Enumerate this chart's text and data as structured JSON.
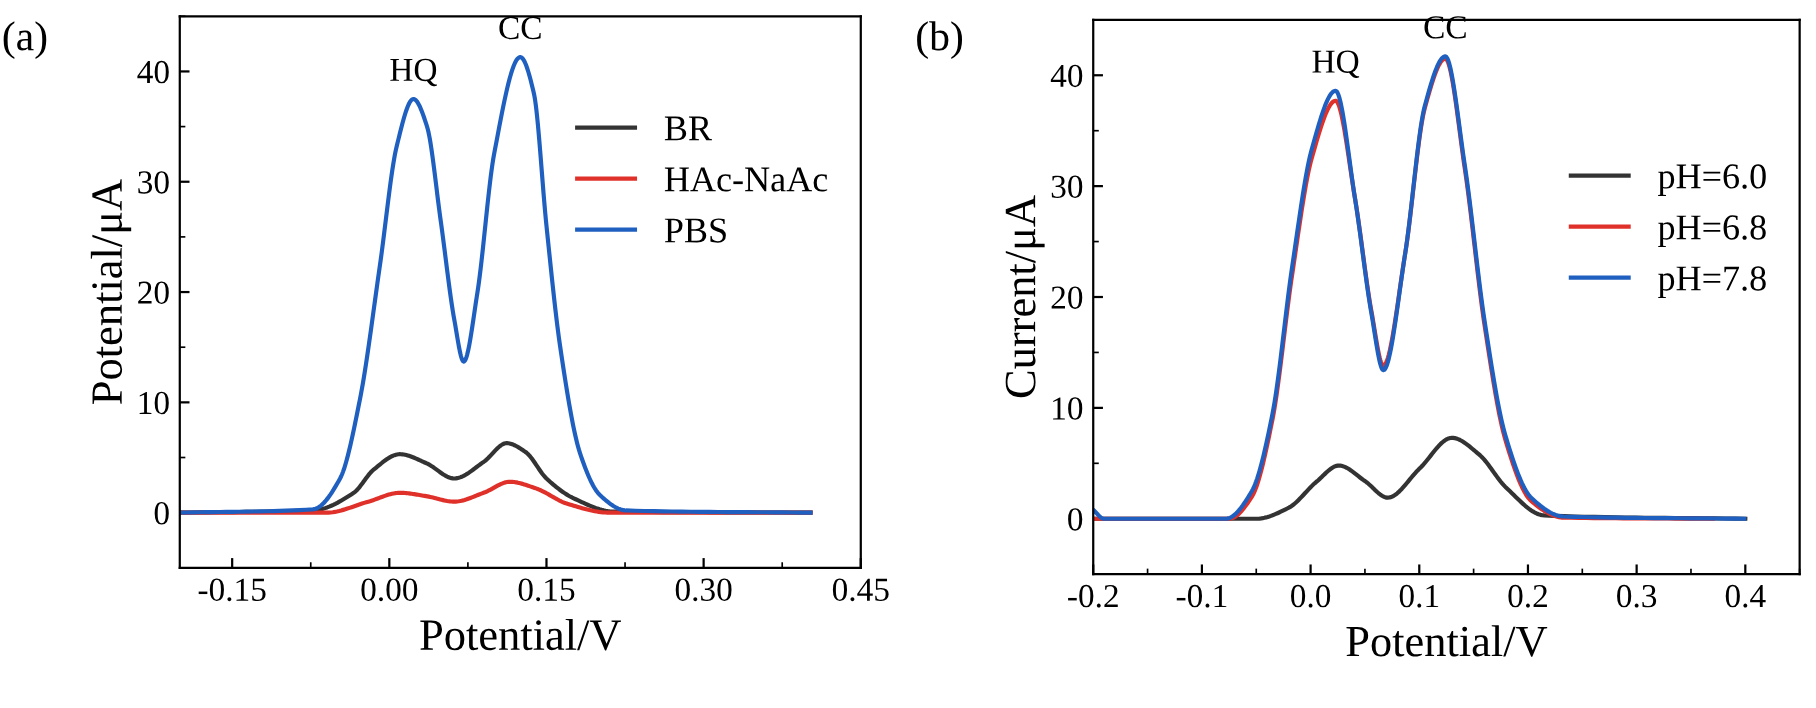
{
  "chart_data": [
    {
      "type": "line",
      "xlabel": "Potential/V",
      "ylabel": "Potential/μA",
      "xlim": [
        -0.2,
        0.45
      ],
      "ylim": [
        -5,
        45
      ],
      "xticks": [
        {
          "value": -0.15,
          "label": "-0.15"
        },
        {
          "value": 0,
          "label": "0.00"
        },
        {
          "value": 0.15,
          "label": "0.15"
        },
        {
          "value": 0.3,
          "label": "0.30"
        },
        {
          "value": 0.45,
          "label": "0.45"
        }
      ],
      "yticks": [
        0,
        10,
        20,
        30,
        40
      ],
      "legend": "top right",
      "grid": false,
      "annotations": [
        "(a)",
        {
          "text": "HQ",
          "x": 0.023,
          "y": 37.5
        },
        {
          "text": "CC",
          "x": 0.125,
          "y": 41.3
        }
      ],
      "series": [
        {
          "name": "BR",
          "color": "#333333",
          "x": [
            -0.2,
            -0.073,
            -0.034,
            -0.015,
            0.01,
            0.035,
            0.062,
            0.09,
            0.112,
            0.13,
            0.15,
            0.176,
            0.214,
            0.402
          ],
          "values": [
            0,
            0.2,
            1.8,
            3.9,
            5.3,
            4.5,
            3.1,
            4.6,
            6.3,
            5.5,
            3.1,
            1.3,
            0.1,
            0
          ]
        },
        {
          "name": "HAc-NaAc",
          "color": "#e0302a",
          "x": [
            -0.2,
            -0.06,
            -0.02,
            0.01,
            0.035,
            0.062,
            0.09,
            0.115,
            0.14,
            0.17,
            0.21,
            0.402
          ],
          "values": [
            0,
            0,
            1.0,
            1.8,
            1.5,
            1.0,
            1.8,
            2.8,
            2.2,
            0.8,
            0,
            0
          ]
        },
        {
          "name": "PBS",
          "color": "#1f5fbf",
          "x": [
            -0.2,
            -0.073,
            -0.047,
            -0.028,
            -0.009,
            0.007,
            0.023,
            0.036,
            0.049,
            0.062,
            0.071,
            0.084,
            0.1,
            0.125,
            0.138,
            0.15,
            0.163,
            0.182,
            0.201,
            0.226,
            0.402
          ],
          "values": [
            0,
            0.3,
            3.1,
            10.3,
            22.4,
            33.2,
            37.5,
            35,
            26.5,
            17.5,
            13.7,
            19.9,
            32.5,
            41.3,
            38,
            26,
            15.1,
            5.4,
            1.6,
            0.2,
            0
          ]
        }
      ]
    },
    {
      "type": "line",
      "xlabel": "Potential/V",
      "ylabel": "Current/μA",
      "xlim": [
        -0.2,
        0.45
      ],
      "ylim": [
        -5,
        45
      ],
      "xticks": [
        {
          "value": -0.2,
          "label": "-0.2"
        },
        {
          "value": -0.1,
          "label": "-0.1"
        },
        {
          "value": 0,
          "label": "0.0"
        },
        0.1,
        0.2,
        0.3,
        0.4
      ],
      "yticks": [
        0,
        10,
        20,
        30,
        40
      ],
      "legend": "right",
      "grid": false,
      "annotations": [
        "(b)",
        {
          "text": "HQ",
          "x": 0.023,
          "y": 38.6
        },
        {
          "text": "CC",
          "x": 0.124,
          "y": 41.7
        }
      ],
      "series": [
        {
          "name": "pH=6.0",
          "color": "#333333",
          "x": [
            -0.2,
            -0.05,
            -0.02,
            0.005,
            0.026,
            0.05,
            0.071,
            0.1,
            0.13,
            0.155,
            0.18,
            0.215,
            0.4
          ],
          "values": [
            0,
            0,
            1.0,
            3.3,
            4.8,
            3.4,
            1.9,
            4.5,
            7.3,
            5.8,
            2.8,
            0.3,
            0
          ]
        },
        {
          "name": "pH=6.8",
          "color": "#e0302a",
          "x": [
            -0.2,
            -0.075,
            -0.054,
            -0.035,
            -0.017,
            0.001,
            0.023,
            0.041,
            0.056,
            0.067,
            0.087,
            0.105,
            0.124,
            0.142,
            0.16,
            0.179,
            0.203,
            0.233,
            0.37
          ],
          "values": [
            0,
            0,
            2.0,
            9.0,
            22.0,
            32.5,
            37.7,
            28.8,
            18.7,
            13.8,
            23.9,
            37.0,
            41.5,
            31.5,
            17.5,
            7.2,
            1.6,
            0.1,
            0
          ]
        },
        {
          "name": "pH=7.8",
          "color": "#1f5fbf",
          "x": [
            -0.2,
            -0.19,
            -0.078,
            -0.054,
            -0.035,
            -0.017,
            0.001,
            0.023,
            0.041,
            0.056,
            0.067,
            0.087,
            0.105,
            0.124,
            0.142,
            0.16,
            0.179,
            0.203,
            0.233,
            0.399
          ],
          "values": [
            0.8,
            0,
            0,
            2.5,
            9.5,
            22.7,
            33.3,
            38.6,
            28.8,
            18.5,
            13.4,
            23.9,
            37.2,
            41.7,
            31.8,
            17.9,
            7.6,
            1.9,
            0.2,
            0
          ]
        }
      ]
    }
  ]
}
